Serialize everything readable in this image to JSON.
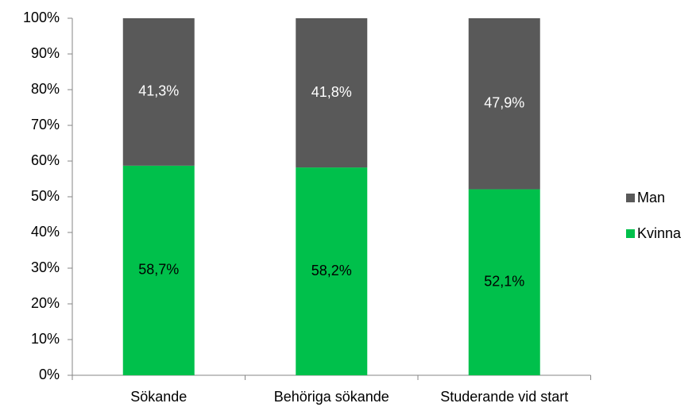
{
  "chart_data": {
    "type": "stacked_bar",
    "categories": [
      "Sökande",
      "Behöriga sökande",
      "Studerande vid start"
    ],
    "series": [
      {
        "name": "Kvinna",
        "color": "#00c04b",
        "label_color": "#000000",
        "values": [
          58.7,
          58.2,
          52.1
        ],
        "value_labels": [
          "58,7%",
          "58,2%",
          "52,1%"
        ]
      },
      {
        "name": "Man",
        "color": "#595959",
        "label_color": "#ffffff",
        "values": [
          41.3,
          41.8,
          47.9
        ],
        "value_labels": [
          "41,3%",
          "41,8%",
          "47,9%"
        ]
      }
    ],
    "ylim": [
      0,
      100
    ],
    "yticks": [
      {
        "value": 0,
        "label": "0%"
      },
      {
        "value": 10,
        "label": "10%"
      },
      {
        "value": 20,
        "label": "20%"
      },
      {
        "value": 30,
        "label": "30%"
      },
      {
        "value": 40,
        "label": "40%"
      },
      {
        "value": 50,
        "label": "50%"
      },
      {
        "value": 60,
        "label": "60%"
      },
      {
        "value": 70,
        "label": "70%"
      },
      {
        "value": 80,
        "label": "80%"
      },
      {
        "value": 90,
        "label": "90%"
      },
      {
        "value": 100,
        "label": "100%"
      }
    ],
    "grid": false,
    "legend": "right"
  }
}
